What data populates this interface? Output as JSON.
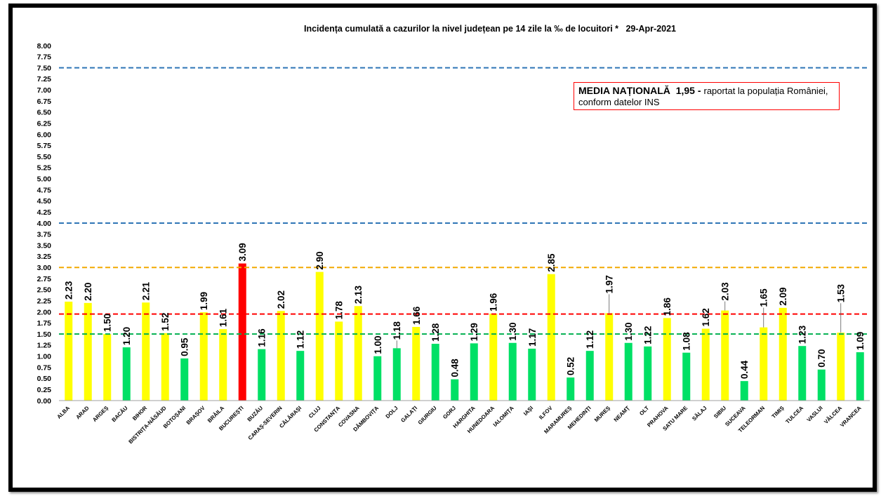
{
  "chart_data": {
    "type": "bar",
    "title": "Incidența cumulată a cazurilor la nivel județean pe 14 zile la ‰ de locuitori *   29-Apr-2021",
    "xlabel": "",
    "ylabel": "",
    "ylim": [
      0,
      8
    ],
    "grid": false,
    "legend": "none",
    "y_ticks": [
      "0.00",
      "0.25",
      "0.50",
      "0.75",
      "1.00",
      "1.25",
      "1.50",
      "1.75",
      "2.00",
      "2.25",
      "2.50",
      "2.75",
      "3.00",
      "3.25",
      "3.50",
      "3.75",
      "4.00",
      "4.25",
      "4.50",
      "4.75",
      "5.00",
      "5.25",
      "5.50",
      "5.75",
      "6.00",
      "6.25",
      "6.50",
      "6.75",
      "7.00",
      "7.25",
      "7.50",
      "7.75",
      "8.00"
    ],
    "categories": [
      "ALBA",
      "ARAD",
      "ARGEȘ",
      "BACĂU",
      "BIHOR",
      "BISTRIȚA-NĂSĂUD",
      "BOTOȘANI",
      "BRAȘOV",
      "BRĂILA",
      "BUCUREȘTI",
      "BUZĂU",
      "CARAȘ-SEVERIN",
      "CĂLĂRAȘI",
      "CLUJ",
      "CONSTANȚA",
      "COVASNA",
      "DÂMBOVIȚA",
      "DOLJ",
      "GALAȚI",
      "GIURGIU",
      "GORJ",
      "HARGHITA",
      "HUNEDOARA",
      "IALOMIȚA",
      "IAȘI",
      "ILFOV",
      "MARAMUREȘ",
      "MEHEDINȚI",
      "MUREȘ",
      "NEAMȚ",
      "OLT",
      "PRAHOVA",
      "SATU MARE",
      "SĂLAJ",
      "SIBIU",
      "SUCEAVA",
      "TELEORMAN",
      "TIMIȘ",
      "TULCEA",
      "VASLUI",
      "VÂLCEA",
      "VRANCEA"
    ],
    "values": [
      2.23,
      2.2,
      1.5,
      1.2,
      2.21,
      1.52,
      0.95,
      1.99,
      1.61,
      3.09,
      1.16,
      2.02,
      1.12,
      2.9,
      1.78,
      2.13,
      1.0,
      1.18,
      1.66,
      1.28,
      0.48,
      1.29,
      1.96,
      1.3,
      1.17,
      2.85,
      0.52,
      1.12,
      1.97,
      1.3,
      1.22,
      1.86,
      1.08,
      1.62,
      2.03,
      0.44,
      1.65,
      2.09,
      1.23,
      0.7,
      1.53,
      1.09
    ],
    "value_labels": [
      "2.23",
      "2.20",
      "1.50",
      "1.20",
      "2.21",
      "1.52",
      "0.95",
      "1.99",
      "1.61",
      "3.09",
      "1.16",
      "2.02",
      "1.12",
      "2.90",
      "1.78",
      "2.13",
      "1.00",
      "1.18",
      "1.66",
      "1.28",
      "0.48",
      "1.29",
      "1.96",
      "1.30",
      "1.17",
      "2.85",
      "0.52",
      "1.12",
      "1.97",
      "1.30",
      "1.22",
      "1.86",
      "1.08",
      "1.62",
      "2.03",
      "0.44",
      "1.65",
      "2.09",
      "1.23",
      "0.70",
      "1.53",
      "1.09"
    ],
    "bar_colors": [
      "#ffff00",
      "#ffff00",
      "#ffff00",
      "#00e065",
      "#ffff00",
      "#ffff00",
      "#00e065",
      "#ffff00",
      "#ffff00",
      "#ff0000",
      "#00e065",
      "#ffff00",
      "#00e065",
      "#ffff00",
      "#ffff00",
      "#ffff00",
      "#00e065",
      "#00e065",
      "#ffff00",
      "#00e065",
      "#00e065",
      "#00e065",
      "#ffff00",
      "#00e065",
      "#00e065",
      "#ffff00",
      "#00e065",
      "#00e065",
      "#ffff00",
      "#00e065",
      "#00e065",
      "#ffff00",
      "#00e065",
      "#ffff00",
      "#ffff00",
      "#00e065",
      "#ffff00",
      "#ffff00",
      "#00e065",
      "#00e065",
      "#ffff00",
      "#00e065"
    ],
    "reference_lines": [
      {
        "value": 7.5,
        "color": "#2e75b6"
      },
      {
        "value": 4.0,
        "color": "#2e75b6"
      },
      {
        "value": 3.0,
        "color": "#f2a900"
      },
      {
        "value": 1.95,
        "color": "#ff0000"
      },
      {
        "value": 1.5,
        "color": "#00b050"
      }
    ]
  },
  "annotation": {
    "headline": "MEDIA NAȚIONALĂ  1,95 -",
    "line1_rest": "raportat la populația României,",
    "line2": "conform datelor INS"
  },
  "colors": {
    "frame": "#000000",
    "annotation_border": "#ff0000",
    "axis": "#a0a0a0",
    "leader_line": "#595959"
  }
}
